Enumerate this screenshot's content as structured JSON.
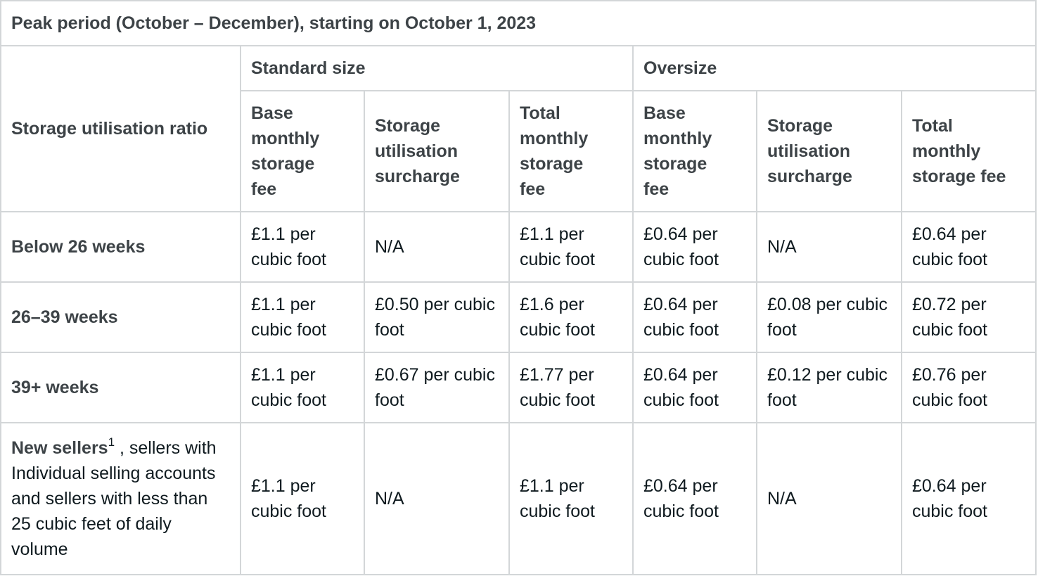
{
  "title": "Peak period (October – December), starting on October 1, 2023",
  "corner_header": "Storage utilisation ratio",
  "groups": [
    "Standard size",
    "Oversize"
  ],
  "columns": [
    "Base monthly storage fee",
    "Storage utilisation surcharge",
    "Total monthly storage fee",
    "Base monthly storage fee",
    "Storage utilisation surcharge",
    "Total monthly storage fee"
  ],
  "rows": [
    {
      "label": "Below 26 weeks",
      "cells": [
        "£1.1 per cubic foot",
        "N/A",
        "£1.1 per cubic foot",
        "£0.64 per cubic foot",
        "N/A",
        "£0.64 per cubic foot"
      ]
    },
    {
      "label": "26–39 weeks",
      "cells": [
        "£1.1 per cubic foot",
        "£0.50 per cubic foot",
        "£1.6 per cubic foot",
        "£0.64 per cubic foot",
        "£0.08 per cubic foot",
        "£0.72 per cubic foot"
      ]
    },
    {
      "label": "39+ weeks",
      "cells": [
        "£1.1 per cubic foot",
        "£0.67 per cubic foot",
        "£1.77 per cubic foot",
        "£0.64 per cubic foot",
        "£0.12 per cubic foot",
        "£0.76 per cubic foot"
      ]
    },
    {
      "label_bold": "New sellers",
      "label_sup": "1",
      "label_rest": " , sellers with Individual selling accounts and sellers with less than 25 cubic feet of daily volume",
      "cells": [
        "£1.1 per cubic foot",
        "N/A",
        "£1.1 per cubic foot",
        "£0.64 per cubic foot",
        "N/A",
        "£0.64 per cubic foot"
      ]
    }
  ]
}
